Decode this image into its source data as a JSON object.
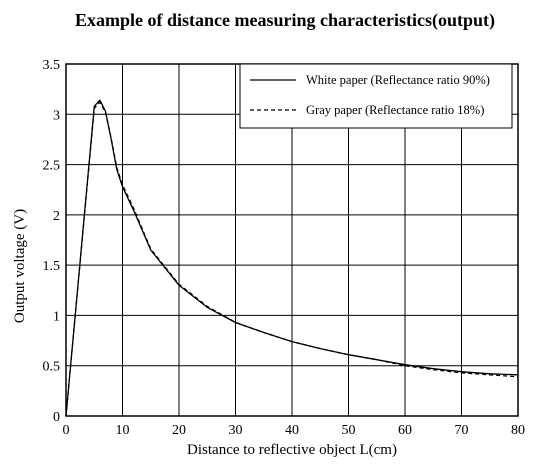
{
  "chart_data": {
    "type": "line",
    "title": "Example of distance measuring characteristics(output)",
    "xlabel": "Distance to reflective object L(cm)",
    "ylabel": "Output voltage (V)",
    "xlim": [
      0,
      80
    ],
    "ylim": [
      0,
      3.5
    ],
    "x_ticks": [
      "0",
      "10",
      "20",
      "30",
      "40",
      "50",
      "60",
      "70",
      "80"
    ],
    "y_ticks": [
      "0",
      "0.5",
      "1",
      "1.5",
      "2",
      "2.5",
      "3",
      "3.5"
    ],
    "grid": true,
    "legend_position": "top-right",
    "series": [
      {
        "name": "White paper (Reflectance ratio 90%)",
        "line_style": "solid",
        "x": [
          0,
          5,
          6,
          7,
          8,
          9,
          10,
          12,
          15,
          20,
          25,
          30,
          35,
          40,
          45,
          50,
          55,
          60,
          65,
          70,
          75,
          80
        ],
        "y": [
          0,
          3.08,
          3.14,
          3.03,
          2.75,
          2.45,
          2.28,
          2.04,
          1.65,
          1.3,
          1.08,
          0.93,
          0.83,
          0.74,
          0.67,
          0.61,
          0.56,
          0.51,
          0.47,
          0.44,
          0.42,
          0.41
        ]
      },
      {
        "name": "Gray paper (Reflectance ratio 18%)",
        "line_style": "dashed",
        "x": [
          0,
          5,
          6,
          7,
          8,
          9,
          10,
          12,
          15,
          20,
          25,
          30,
          35,
          40,
          45,
          50,
          55,
          60,
          65,
          70,
          75,
          80
        ],
        "y": [
          0,
          3.06,
          3.12,
          3.02,
          2.76,
          2.47,
          2.3,
          2.06,
          1.66,
          1.31,
          1.09,
          0.93,
          0.83,
          0.74,
          0.67,
          0.61,
          0.56,
          0.5,
          0.46,
          0.43,
          0.41,
          0.39
        ]
      }
    ]
  }
}
